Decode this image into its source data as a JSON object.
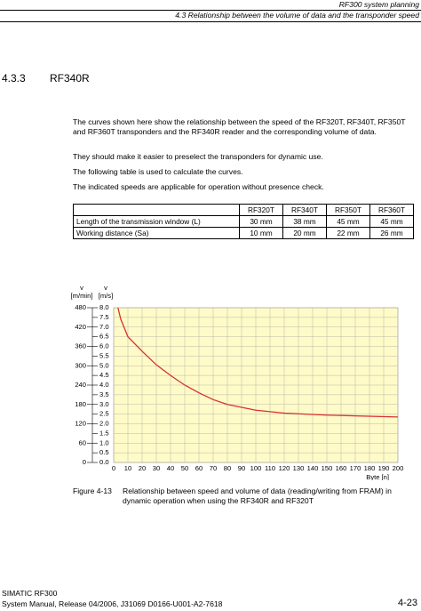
{
  "header": {
    "chapter": "RF300 system planning",
    "section": "4.3 Relationship between the volume of data and the transponder speed"
  },
  "heading": {
    "number": "4.3.3",
    "title": "RF340R"
  },
  "paragraphs": [
    "The curves shown here show the relationship between the speed of the RF320T, RF340T, RF350T and RF360T transponders and the RF340R reader and the corresponding volume of data.",
    "They should make it easier to preselect the transponders for dynamic use.",
    "The following table is used to calculate the curves.",
    "The indicated speeds are applicable for operation without presence check."
  ],
  "table": {
    "header": [
      "",
      "RF320T",
      "RF340T",
      "RF350T",
      "RF360T"
    ],
    "rows": [
      [
        "Length of the transmission window (L)",
        "30 mm",
        "38 mm",
        "45 mm",
        "45 mm"
      ],
      [
        "Working distance (Sa)",
        "10 mm",
        "20 mm",
        "22 mm",
        "26 mm"
      ]
    ]
  },
  "chart_data": {
    "type": "line",
    "y_label": {
      "symbol": "v",
      "unit": "[m/s]"
    },
    "y2_label": {
      "symbol": "v",
      "unit": "[m/min]"
    },
    "x_label": "Byte [n]",
    "x": [
      3,
      5,
      10,
      20,
      30,
      40,
      50,
      60,
      70,
      80,
      90,
      100,
      120,
      150,
      200
    ],
    "series": [
      {
        "name": "RF320T",
        "color": "#d93030",
        "values": [
          8.0,
          7.4,
          6.5,
          5.75,
          5.05,
          4.5,
          4.0,
          3.6,
          3.25,
          3.0,
          2.85,
          2.7,
          2.55,
          2.45,
          2.35
        ]
      }
    ],
    "xlim": [
      0,
      200
    ],
    "xticks": [
      0,
      10,
      20,
      30,
      40,
      50,
      60,
      70,
      80,
      90,
      100,
      110,
      120,
      130,
      140,
      150,
      160,
      170,
      180,
      190,
      200
    ],
    "ylim": [
      0,
      8
    ],
    "yticks": [
      {
        "value": 0,
        "label": "0.0"
      },
      0.5,
      {
        "value": 1,
        "label": "1.0"
      },
      1.5,
      {
        "value": 2,
        "label": "2.0"
      },
      2.5,
      {
        "value": 3,
        "label": "3.0"
      },
      3.5,
      {
        "value": 4,
        "label": "4.0"
      },
      4.5,
      {
        "value": 5,
        "label": "5.0"
      },
      5.5,
      {
        "value": 6,
        "label": "6.0"
      },
      6.5,
      {
        "value": 7,
        "label": "7.0"
      },
      7.5,
      {
        "value": 8,
        "label": "8.0"
      }
    ],
    "y2lim": [
      0,
      480
    ],
    "y2ticks": [
      0,
      60,
      120,
      180,
      240,
      300,
      360,
      420,
      480
    ],
    "grid": true,
    "background": "#fefbc8"
  },
  "caption": {
    "number": "Figure 4-13",
    "text": "Relationship between speed and volume of data (reading/writing from FRAM) in dynamic operation when using the RF340R and RF320T"
  },
  "footer": {
    "product": "SIMATIC RF300",
    "manual": "System Manual, Release 04/2006, J31069 D0166-U001-A2-7618",
    "page": "4-23"
  }
}
